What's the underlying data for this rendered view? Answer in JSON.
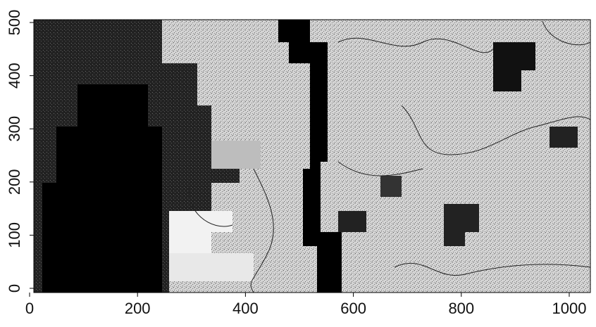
{
  "chart_data": {
    "type": "raster",
    "xlim": [
      0,
      1040
    ],
    "ylim": [
      0,
      500
    ],
    "xticks": [
      0,
      200,
      400,
      600,
      800,
      1000
    ],
    "yticks": [
      0,
      100,
      200,
      300,
      400,
      500
    ]
  }
}
